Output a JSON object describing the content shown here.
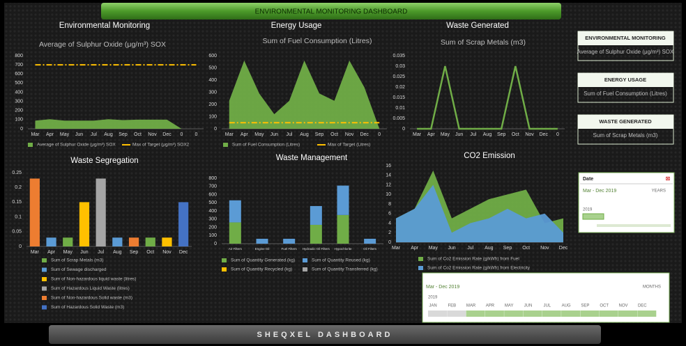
{
  "header": {
    "title": "ENVIRONMENTAL MONITORING DASHBOARD"
  },
  "footer": {
    "title": "SHEQXEL DASHBOARD"
  },
  "panels": [
    {
      "heading": "ENVIRONMENTAL MONITORING",
      "text": "Average of Sulphur Oxide (μg/m³) SOX"
    },
    {
      "heading": "ENERGY USAGE",
      "text": "Sum of Fuel Consumption (Litres)"
    },
    {
      "heading": "WASTE GENERATED",
      "text": "Sum of Scrap Metals (m3)"
    }
  ],
  "date_slicer": {
    "title": "Date",
    "range": "Mar - Dec 2019",
    "level": "YEARS",
    "years": [
      "2019"
    ]
  },
  "timeline": {
    "range": "Mar - Dec 2019",
    "level": "MONTHS",
    "year": "2019",
    "months": [
      "JAN",
      "FEB",
      "MAR",
      "APR",
      "MAY",
      "JUN",
      "JUL",
      "AUG",
      "SEP",
      "OCT",
      "NOV",
      "DEC"
    ],
    "selected": [
      false,
      false,
      true,
      true,
      true,
      true,
      true,
      true,
      true,
      true,
      true,
      true
    ]
  },
  "chart_data": [
    {
      "type": "area",
      "section_title": "Environmental Monitoring",
      "title": "Average of Sulphur Oxide (μg/m³) SOX",
      "categories": [
        "Mar",
        "Apr",
        "May",
        "Jun",
        "Jul",
        "Aug",
        "Sep",
        "Oct",
        "Nov",
        "Dec",
        "0",
        "0"
      ],
      "series": [
        {
          "name": "Average of Sulphur Oxide (μg/m³) SOX",
          "type": "area",
          "color": "#70ad47",
          "values": [
            90,
            105,
            90,
            90,
            90,
            105,
            95,
            100,
            100,
            100,
            0,
            0
          ]
        },
        {
          "name": "Max of Target (μg/m³) SOX2",
          "type": "line",
          "style": "dash-dot",
          "color": "#ffc000",
          "values": [
            700,
            700,
            700,
            700,
            700,
            700,
            700,
            700,
            700,
            700,
            700,
            700
          ]
        }
      ],
      "ylim": [
        0,
        800
      ],
      "yticks": [
        0,
        100,
        200,
        300,
        400,
        500,
        600,
        700,
        800
      ],
      "grid": false,
      "legend": "bottom"
    },
    {
      "type": "area",
      "section_title": "Energy Usage",
      "title": "Sum of Fuel Consumption (Litres)",
      "categories": [
        "Mar",
        "Apr",
        "May",
        "Jun",
        "Jul",
        "Aug",
        "Sep",
        "Oct",
        "Nov",
        "Dec",
        "0"
      ],
      "series": [
        {
          "name": "Sum of Fuel Consumption (Litres)",
          "type": "area",
          "color": "#70ad47",
          "values": [
            230,
            560,
            290,
            120,
            230,
            560,
            290,
            230,
            560,
            340,
            0
          ]
        },
        {
          "name": "Max of Target (Litres)",
          "type": "line",
          "style": "dash-dot",
          "color": "#ffc000",
          "values": [
            50,
            50,
            50,
            50,
            50,
            50,
            50,
            50,
            50,
            50,
            50
          ]
        }
      ],
      "ylim": [
        0,
        600
      ],
      "yticks": [
        0,
        100,
        200,
        300,
        400,
        500,
        600
      ],
      "grid": false,
      "legend": "bottom"
    },
    {
      "type": "line",
      "section_title": "Waste Generated",
      "title": "Sum of Scrap Metals (m3)",
      "categories": [
        "Mar",
        "Apr",
        "May",
        "Jun",
        "Jul",
        "Aug",
        "Sep",
        "Oct",
        "Nov",
        "Dec",
        "0"
      ],
      "series": [
        {
          "type": "line",
          "color": "#70ad47",
          "values": [
            0,
            0,
            0.03,
            0,
            0,
            0,
            0,
            0.03,
            0,
            0,
            0
          ]
        }
      ],
      "ylim": [
        0,
        0.035
      ],
      "yticks": [
        0,
        0.005,
        0.01,
        0.015,
        0.02,
        0.025,
        0.03,
        0.035
      ],
      "grid": false
    },
    {
      "type": "bar",
      "title": "Waste Segregation",
      "categories": [
        "Mar",
        "Apr",
        "May",
        "Jun",
        "Jul",
        "Aug",
        "Sep",
        "Oct",
        "Nov",
        "Dec"
      ],
      "series": [
        {
          "name": "Sum of Scrap Metals (m3)",
          "color": "#70ad47",
          "values": [
            null,
            null,
            0.03,
            null,
            null,
            null,
            null,
            0.03,
            null,
            null
          ]
        },
        {
          "name": "Sum of Sewage discharged",
          "color": "#5b9bd5",
          "values": [
            null,
            0.03,
            null,
            null,
            null,
            0.03,
            null,
            null,
            null,
            null
          ]
        },
        {
          "name": "Sum of Non-hazardous liquid waste (litres)",
          "color": "#ffc000",
          "values": [
            null,
            null,
            null,
            0.15,
            null,
            null,
            null,
            null,
            0.03,
            null
          ]
        },
        {
          "name": "Sum of Hazardous Liquid Waste (litres)",
          "color": "#a5a5a5",
          "values": [
            null,
            null,
            null,
            null,
            0.23,
            null,
            null,
            null,
            null,
            null
          ]
        },
        {
          "name": "Sum of Non-hazardous Solid waste (m3)",
          "color": "#ed7d31",
          "values": [
            0.23,
            null,
            null,
            null,
            null,
            null,
            0.03,
            null,
            null,
            null
          ]
        },
        {
          "name": "Sum of Hazardous Solid Waste (m3)",
          "color": "#4472c4",
          "values": [
            null,
            null,
            null,
            null,
            null,
            null,
            null,
            null,
            null,
            0.15
          ]
        }
      ],
      "ylim": [
        0,
        0.25
      ],
      "yticks": [
        0,
        0.05,
        0.1,
        0.15,
        0.2,
        0.25
      ],
      "grid": false,
      "legend": "bottom"
    },
    {
      "type": "stacked_bar",
      "title": "Waste Management",
      "categories": [
        "Air Filters",
        "Engine Oil",
        "Fuel Filters",
        "Hydraulic Oil Filters",
        "Hypochlorite",
        "Oil Filters"
      ],
      "series": [
        {
          "name": "Sum of Quantity Generated (kg)",
          "color": "#70ad47",
          "values": [
            260,
            null,
            null,
            230,
            350,
            null
          ]
        },
        {
          "name": "Sum of Quantity Reused (kg)",
          "color": "#5b9bd5",
          "values": [
            270,
            60,
            60,
            230,
            360,
            60
          ]
        },
        {
          "name": "Sum of Quantity Recycled (kg)",
          "color": "#ffc000",
          "values": [
            null,
            null,
            null,
            null,
            null,
            null
          ]
        },
        {
          "name": "Sum of Quantity Transferred (kg)",
          "color": "#a5a5a5",
          "values": [
            null,
            null,
            null,
            null,
            null,
            null
          ]
        }
      ],
      "ylim": [
        0,
        800
      ],
      "yticks": [
        0,
        100,
        200,
        300,
        400,
        500,
        600,
        700,
        800
      ],
      "grid": false,
      "legend": "bottom"
    },
    {
      "type": "area",
      "title": "CO2 Emission",
      "categories": [
        "Mar",
        "Apr",
        "May",
        "Jun",
        "Jul",
        "Aug",
        "Sep",
        "Oct",
        "Nov",
        "Dec"
      ],
      "series": [
        {
          "name": "Sum of Co2 Emission Rate (g/kWh) from Fuel",
          "type": "area",
          "color": "#70ad47",
          "values": [
            5,
            7,
            15,
            5,
            7,
            9,
            10,
            11,
            4,
            5
          ]
        },
        {
          "name": "Sum of Co2 Emission Rate (g/kWh) from Electricity",
          "type": "area",
          "color": "#5b9bd5",
          "values": [
            5,
            7,
            12,
            2,
            4,
            5,
            7,
            5,
            6,
            2
          ]
        }
      ],
      "ylim": [
        0,
        16
      ],
      "yticks": [
        0,
        2,
        4,
        6,
        8,
        10,
        12,
        14,
        16
      ],
      "grid": false,
      "legend": "bottom"
    }
  ]
}
